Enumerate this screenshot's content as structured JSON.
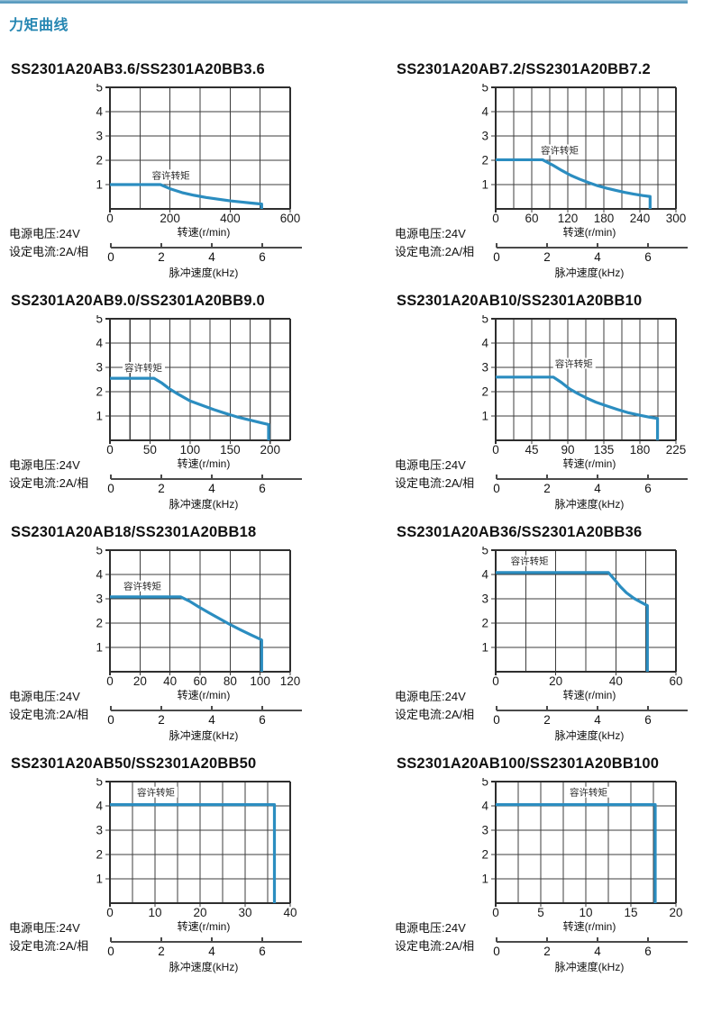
{
  "page": {
    "header_title": "力矩曲线",
    "accent_color": "#2586B2",
    "curve_color": "#2B8DC0",
    "grid_color": "#3d3d3d"
  },
  "shared": {
    "annotation": "容许转矩",
    "speed_axis_label": "转速(r/min)",
    "pulse_axis_label": "脉冲速度(kHz)",
    "pulse_ticks": [
      0,
      2,
      4,
      6
    ],
    "notes": [
      "电源电压:24V",
      "设定电流:2A/相"
    ],
    "ylim": [
      0,
      5
    ],
    "yticks": [
      1,
      2,
      3,
      4,
      5
    ]
  },
  "chart_data": [
    {
      "type": "line",
      "title": "SS2301A20AB3.6/SS2301A20BB3.6",
      "xlim": [
        0,
        600
      ],
      "xticks": [
        0,
        200,
        400,
        600
      ],
      "x_minor_step": 100,
      "points": [
        [
          0,
          1.0
        ],
        [
          168,
          1.0
        ],
        [
          200,
          0.83
        ],
        [
          240,
          0.67
        ],
        [
          280,
          0.56
        ],
        [
          320,
          0.47
        ],
        [
          360,
          0.4
        ],
        [
          400,
          0.33
        ],
        [
          440,
          0.28
        ],
        [
          470,
          0.24
        ],
        [
          505,
          0.2
        ],
        [
          505,
          0
        ]
      ],
      "annotation_xy": [
        140,
        1.25
      ]
    },
    {
      "type": "line",
      "title": "SS2301A20AB7.2/SS2301A20BB7.2",
      "xlim": [
        0,
        300
      ],
      "xticks": [
        0,
        60,
        120,
        180,
        240,
        300
      ],
      "x_minor_step": 30,
      "points": [
        [
          0,
          2.02
        ],
        [
          78,
          2.02
        ],
        [
          95,
          1.8
        ],
        [
          110,
          1.58
        ],
        [
          125,
          1.38
        ],
        [
          140,
          1.22
        ],
        [
          155,
          1.08
        ],
        [
          170,
          0.95
        ],
        [
          185,
          0.85
        ],
        [
          200,
          0.76
        ],
        [
          215,
          0.68
        ],
        [
          230,
          0.61
        ],
        [
          245,
          0.55
        ],
        [
          257,
          0.51
        ],
        [
          257,
          0
        ]
      ],
      "annotation_xy": [
        75,
        2.28
      ]
    },
    {
      "type": "line",
      "title": "SS2301A20AB9.0/SS2301A20BB9.0",
      "xlim": [
        0,
        225
      ],
      "xticks": [
        0,
        50,
        100,
        150,
        200
      ],
      "x_minor_step": 25,
      "points": [
        [
          0,
          2.55
        ],
        [
          55,
          2.55
        ],
        [
          65,
          2.35
        ],
        [
          75,
          2.1
        ],
        [
          85,
          1.9
        ],
        [
          100,
          1.62
        ],
        [
          115,
          1.44
        ],
        [
          130,
          1.26
        ],
        [
          145,
          1.1
        ],
        [
          160,
          0.95
        ],
        [
          175,
          0.83
        ],
        [
          190,
          0.71
        ],
        [
          198,
          0.65
        ],
        [
          198,
          0
        ]
      ],
      "annotation_xy": [
        18,
        2.85
      ]
    },
    {
      "type": "line",
      "title": "SS2301A20AB10/SS2301A20BB10",
      "xlim": [
        0,
        225
      ],
      "xticks": [
        0,
        45,
        90,
        135,
        180,
        225
      ],
      "x_minor_step": 22.5,
      "points": [
        [
          0,
          2.6
        ],
        [
          72,
          2.6
        ],
        [
          82,
          2.38
        ],
        [
          92,
          2.12
        ],
        [
          102,
          1.93
        ],
        [
          112,
          1.76
        ],
        [
          125,
          1.57
        ],
        [
          138,
          1.42
        ],
        [
          152,
          1.27
        ],
        [
          166,
          1.13
        ],
        [
          180,
          1.03
        ],
        [
          192,
          0.95
        ],
        [
          202,
          0.9
        ],
        [
          202,
          0
        ]
      ],
      "annotation_xy": [
        74,
        3.02
      ]
    },
    {
      "type": "line",
      "title": "SS2301A20AB18/SS2301A20BB18",
      "xlim": [
        0,
        120
      ],
      "xticks": [
        0,
        20,
        40,
        60,
        80,
        100,
        120
      ],
      "x_minor_step": 20,
      "points": [
        [
          0,
          3.08
        ],
        [
          47,
          3.08
        ],
        [
          53,
          2.9
        ],
        [
          59,
          2.67
        ],
        [
          66,
          2.42
        ],
        [
          73,
          2.18
        ],
        [
          80,
          1.94
        ],
        [
          87,
          1.72
        ],
        [
          94,
          1.51
        ],
        [
          100,
          1.34
        ],
        [
          101,
          1.3
        ],
        [
          101,
          0
        ]
      ],
      "annotation_xy": [
        9,
        3.38
      ]
    },
    {
      "type": "line",
      "title": "SS2301A20AB36/SS2301A20BB36",
      "xlim": [
        0,
        60
      ],
      "xticks": [
        0,
        20,
        40,
        60
      ],
      "x_minor_step": 10,
      "points": [
        [
          0,
          4.08
        ],
        [
          37.5,
          4.08
        ],
        [
          39.5,
          3.8
        ],
        [
          41.5,
          3.5
        ],
        [
          43.5,
          3.25
        ],
        [
          46,
          3.02
        ],
        [
          48.5,
          2.85
        ],
        [
          50.5,
          2.72
        ],
        [
          50.5,
          0
        ]
      ],
      "annotation_xy": [
        5,
        4.42
      ]
    },
    {
      "type": "line",
      "title": "SS2301A20AB50/SS2301A20BB50",
      "xlim": [
        0,
        40
      ],
      "xticks": [
        0,
        10,
        20,
        30,
        40
      ],
      "x_minor_step": 5,
      "points": [
        [
          0,
          4.05
        ],
        [
          36.5,
          4.05
        ],
        [
          36.5,
          0
        ]
      ],
      "annotation_xy": [
        6,
        4.42
      ]
    },
    {
      "type": "line",
      "title": "SS2301A20AB100/SS2301A20BB100",
      "xlim": [
        0,
        20
      ],
      "xticks": [
        0,
        5,
        10,
        15,
        20
      ],
      "x_minor_step": 2.5,
      "points": [
        [
          0,
          4.05
        ],
        [
          17.7,
          4.05
        ],
        [
          17.7,
          0
        ]
      ],
      "annotation_xy": [
        8.2,
        4.42
      ]
    }
  ]
}
